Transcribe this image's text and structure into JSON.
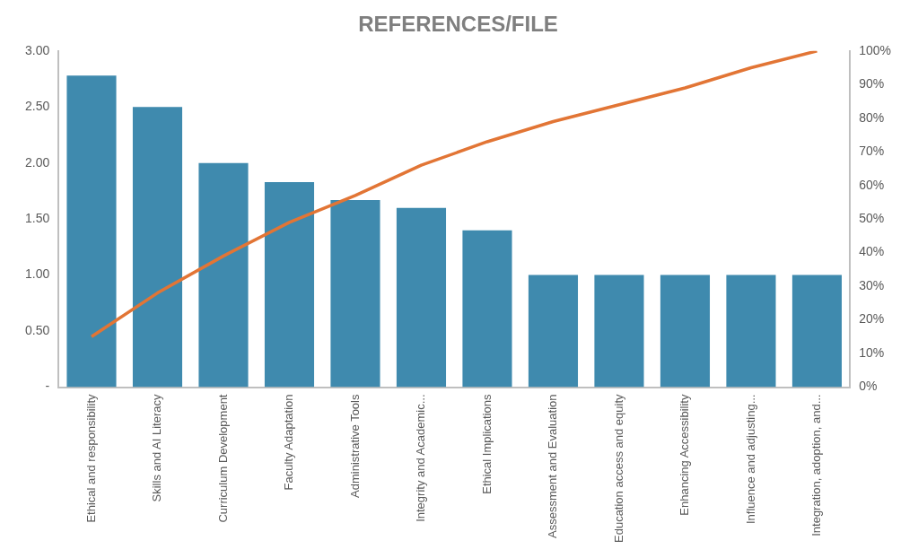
{
  "chart_data": {
    "type": "bar",
    "title": "REFERENCES/FILE",
    "categories": [
      "Ethical and responsibility",
      "Skills and AI Literacy",
      "Curriculum Development",
      "Faculty Adaptation",
      "Administrative Tools",
      "Integrity and Academic...",
      "Ethical Implications",
      "Assessment and Evaluation",
      "Education access and equity",
      "Enhancing Accessibility",
      "Influence and adjusting...",
      "Integration, adoption, and..."
    ],
    "series": [
      {
        "color": "#3f8aae",
        "values": [
          2.78,
          2.5,
          2.0,
          1.83,
          1.67,
          1.6,
          1.4,
          1.0,
          1.0,
          1.0,
          1.0,
          1.0
        ]
      },
      {
        "type": "line",
        "axis": "y2",
        "color": "#e27535",
        "values": [
          15,
          28,
          39,
          49,
          57,
          66,
          73,
          79,
          84,
          89,
          95,
          100
        ]
      }
    ],
    "ylim": [
      0,
      3
    ],
    "yticks": [
      {
        "value": 0,
        "label": "-"
      },
      {
        "value": 0.5,
        "label": "0.50"
      },
      {
        "value": 1,
        "label": "1.00"
      },
      {
        "value": 1.5,
        "label": "1.50"
      },
      {
        "value": 2,
        "label": "2.00"
      },
      {
        "value": 2.5,
        "label": "2.50"
      },
      {
        "value": 3,
        "label": "3.00"
      }
    ],
    "y2lim": [
      0,
      100
    ],
    "y2ticks": [
      {
        "value": 0,
        "label": "0%"
      },
      {
        "value": 10,
        "label": "10%"
      },
      {
        "value": 20,
        "label": "20%"
      },
      {
        "value": 30,
        "label": "30%"
      },
      {
        "value": 40,
        "label": "40%"
      },
      {
        "value": 50,
        "label": "50%"
      },
      {
        "value": 60,
        "label": "60%"
      },
      {
        "value": 70,
        "label": "70%"
      },
      {
        "value": 80,
        "label": "80%"
      },
      {
        "value": 90,
        "label": "90%"
      },
      {
        "value": 100,
        "label": "100%"
      }
    ],
    "grid": false,
    "legend": false,
    "marker": "none"
  }
}
